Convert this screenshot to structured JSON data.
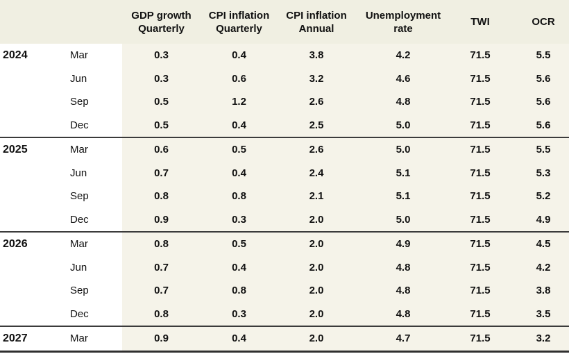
{
  "chart_data": {
    "type": "table",
    "headers": [
      "GDP growth\nQuarterly",
      "CPI inflation\nQuarterly",
      "CPI inflation\nAnnual",
      "Unemployment\nrate",
      "TWI",
      "OCR"
    ],
    "groups": [
      {
        "year": "2024",
        "rows": [
          {
            "month": "Mar",
            "values": [
              "0.3",
              "0.4",
              "3.8",
              "4.2",
              "71.5",
              "5.5"
            ]
          },
          {
            "month": "Jun",
            "values": [
              "0.3",
              "0.6",
              "3.2",
              "4.6",
              "71.5",
              "5.6"
            ]
          },
          {
            "month": "Sep",
            "values": [
              "0.5",
              "1.2",
              "2.6",
              "4.8",
              "71.5",
              "5.6"
            ]
          },
          {
            "month": "Dec",
            "values": [
              "0.5",
              "0.4",
              "2.5",
              "5.0",
              "71.5",
              "5.6"
            ]
          }
        ]
      },
      {
        "year": "2025",
        "rows": [
          {
            "month": "Mar",
            "values": [
              "0.6",
              "0.5",
              "2.6",
              "5.0",
              "71.5",
              "5.5"
            ]
          },
          {
            "month": "Jun",
            "values": [
              "0.7",
              "0.4",
              "2.4",
              "5.1",
              "71.5",
              "5.3"
            ]
          },
          {
            "month": "Sep",
            "values": [
              "0.8",
              "0.8",
              "2.1",
              "5.1",
              "71.5",
              "5.2"
            ]
          },
          {
            "month": "Dec",
            "values": [
              "0.9",
              "0.3",
              "2.0",
              "5.0",
              "71.5",
              "4.9"
            ]
          }
        ]
      },
      {
        "year": "2026",
        "rows": [
          {
            "month": "Mar",
            "values": [
              "0.8",
              "0.5",
              "2.0",
              "4.9",
              "71.5",
              "4.5"
            ]
          },
          {
            "month": "Jun",
            "values": [
              "0.7",
              "0.4",
              "2.0",
              "4.8",
              "71.5",
              "4.2"
            ]
          },
          {
            "month": "Sep",
            "values": [
              "0.7",
              "0.8",
              "2.0",
              "4.8",
              "71.5",
              "3.8"
            ]
          },
          {
            "month": "Dec",
            "values": [
              "0.8",
              "0.3",
              "2.0",
              "4.8",
              "71.5",
              "3.5"
            ]
          }
        ]
      },
      {
        "year": "2027",
        "rows": [
          {
            "month": "Mar",
            "values": [
              "0.9",
              "0.4",
              "2.0",
              "4.7",
              "71.5",
              "3.2"
            ]
          }
        ]
      }
    ],
    "colors": {
      "header_background": "#f0efe2",
      "data_column_background": "#f5f3e9",
      "gutter_background": "#ffffff",
      "group_rule": "#3b3b3b",
      "bottom_rule": "#2f2f2f",
      "text": "#111111"
    },
    "layout": {
      "legend": "none",
      "grid": "horizontal group rules only"
    }
  }
}
